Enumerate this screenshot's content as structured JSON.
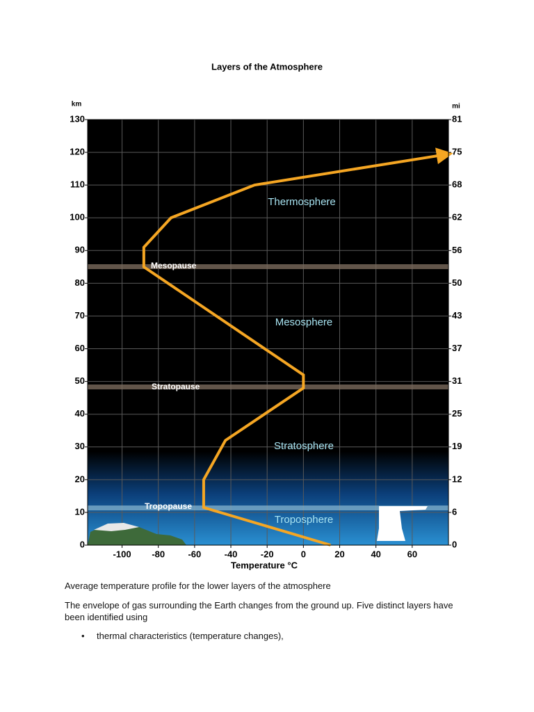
{
  "document": {
    "title": "Layers of the Atmosphere",
    "caption": "Average temperature profile for the lower layers of the atmosphere",
    "paragraph": "The envelope of gas surrounding the Earth changes from the ground up. Five distinct layers have been identified using",
    "bullets": [
      "thermal characteristics (temperature changes),"
    ]
  },
  "chart_data": {
    "type": "line",
    "x_label": "Temperature  °C",
    "y_label": "km",
    "y2_label": "mi",
    "x": [
      15,
      -55,
      -55,
      -43,
      0,
      0,
      -88,
      -88,
      -73,
      -27,
      78
    ],
    "series": [
      {
        "color": "#f5a623",
        "values": [
          0,
          11.5,
          20,
          32,
          48,
          52,
          85,
          91,
          100,
          110,
          119.3
        ]
      }
    ],
    "xlim": [
      -119,
      80
    ],
    "xticks": [
      -100,
      -80,
      -60,
      -40,
      -20,
      0,
      20,
      40,
      60
    ],
    "ylim": [
      0,
      130
    ],
    "yticks": [
      0,
      10,
      20,
      30,
      40,
      50,
      60,
      70,
      80,
      90,
      100,
      110,
      120,
      130
    ],
    "y2lim": [
      0,
      80.78
    ],
    "y2ticks": [
      0,
      {
        "value": 6.21,
        "label": "6"
      },
      {
        "value": 12.43,
        "label": "12"
      },
      {
        "value": 18.64,
        "label": "19"
      },
      {
        "value": 24.85,
        "label": "25"
      },
      {
        "value": 31.07,
        "label": "31"
      },
      {
        "value": 37.28,
        "label": "37"
      },
      {
        "value": 43.496,
        "label": "43"
      },
      {
        "value": 49.71,
        "label": "50"
      },
      {
        "value": 55.92,
        "label": "56"
      },
      {
        "value": 62.14,
        "label": "62"
      },
      {
        "value": 68.35,
        "label": "68"
      },
      {
        "value": 74.56,
        "label": "75"
      },
      {
        "value": 80.78,
        "label": "81"
      }
    ],
    "grid": true,
    "layers": [
      "Thermosphere",
      "Mesosphere",
      "Stratosphere",
      "Troposphere"
    ],
    "boundaries": [
      "Mesopause",
      "Stratopause",
      "Tropopause"
    ]
  }
}
